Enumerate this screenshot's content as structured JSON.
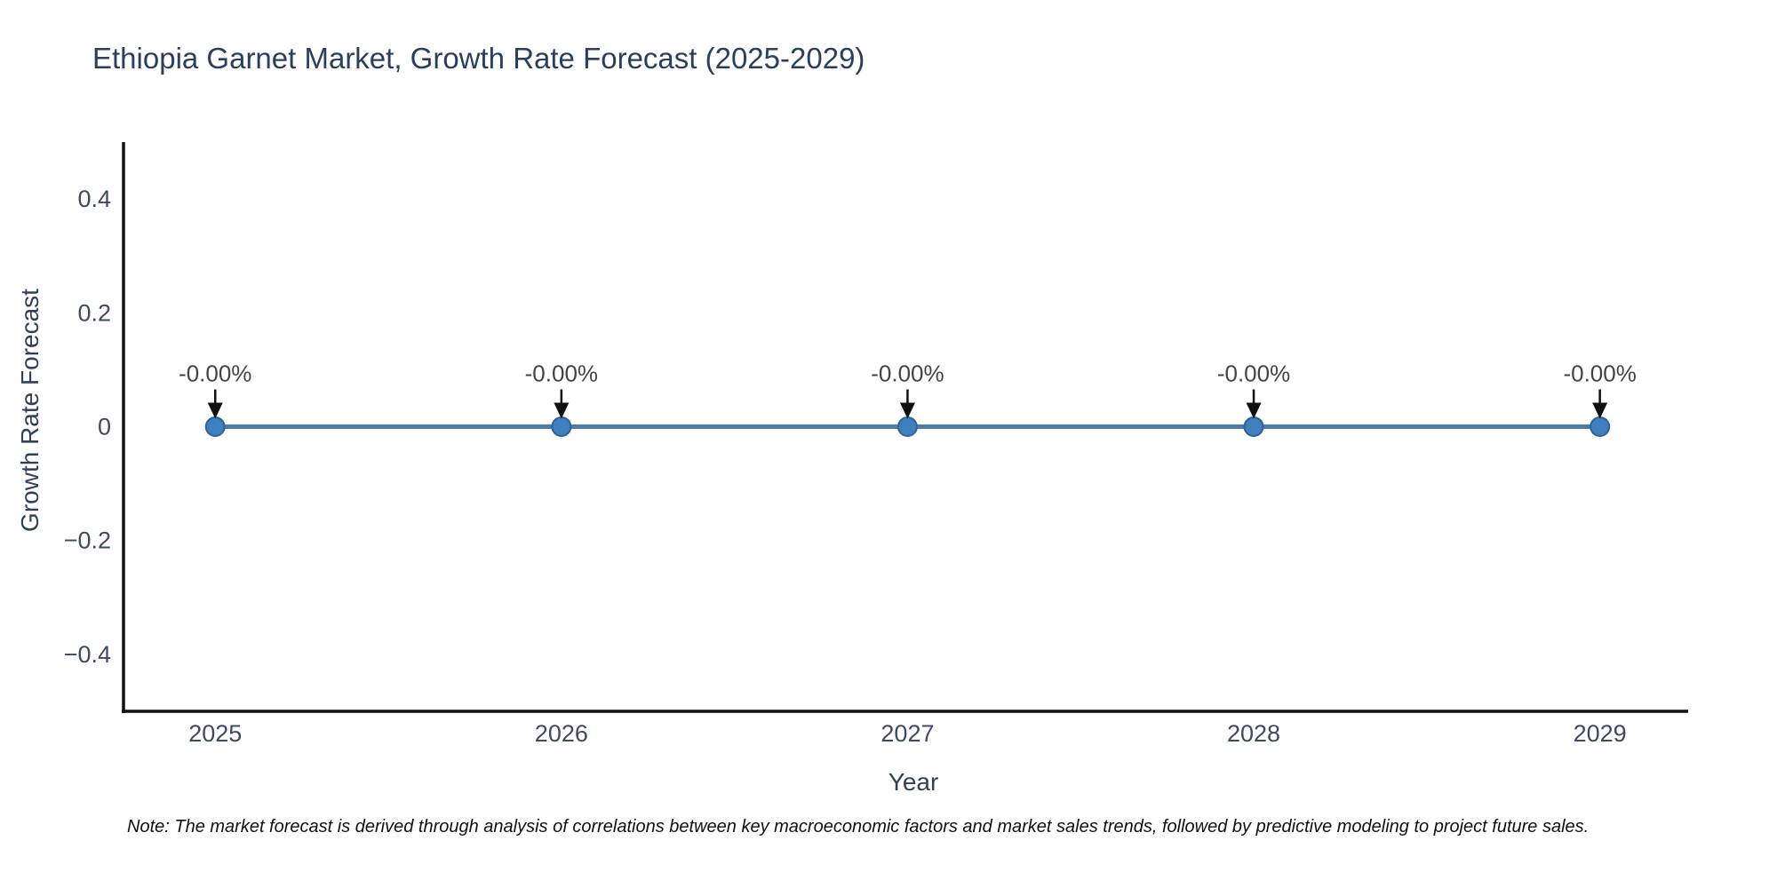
{
  "footnote": "Note: The market forecast is derived through analysis of correlations between key macroeconomic factors and market sales trends, followed by predictive modeling to project future sales.",
  "chart_data": {
    "type": "line",
    "title": "Ethiopia Garnet Market, Growth Rate Forecast (2025-2029)",
    "xlabel": "Year",
    "ylabel": "Growth Rate Forecast",
    "x": [
      2025,
      2026,
      2027,
      2028,
      2029
    ],
    "series": [
      {
        "name": "Growth Rate Forecast",
        "values": [
          0,
          0,
          0,
          0,
          0
        ]
      }
    ],
    "point_labels": [
      "-0.00%",
      "-0.00%",
      "-0.00%",
      "-0.00%",
      "-0.00%"
    ],
    "xticks": [
      2025,
      2026,
      2027,
      2028,
      2029
    ],
    "xtick_labels": [
      "2025",
      "2026",
      "2027",
      "2028",
      "2029"
    ],
    "yticks": [
      -0.4,
      -0.2,
      0,
      0.2,
      0.4
    ],
    "ytick_labels": [
      "−0.4",
      "−0.2",
      "0",
      "0.2",
      "0.4"
    ],
    "xlim": [
      2024.735,
      2029.255
    ],
    "ylim": [
      -0.5,
      0.5
    ],
    "grid": false,
    "legend_position": "none",
    "marker_style": "circle-with-down-arrow-annotation",
    "colors": {
      "line": "#4c7ca8",
      "marker_fill": "#3f7fbe",
      "marker_edge": "#2f6396",
      "axis_line": "#111111",
      "arrow": "#111111",
      "title_text": "#2a3f5f",
      "axis_title_text": "#2f3f5c",
      "tick_text": "#3d4a63",
      "annotation_text": "#444444",
      "note_text": "#111111",
      "background": "#ffffff"
    }
  }
}
